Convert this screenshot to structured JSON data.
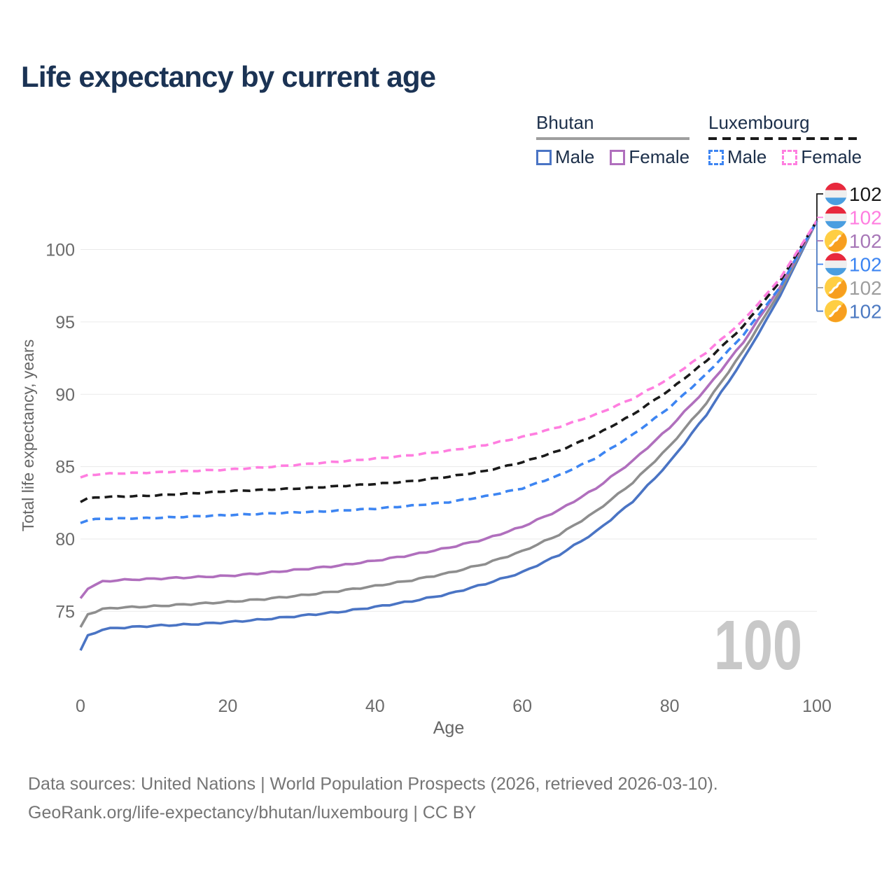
{
  "title": "Life expectancy by current age",
  "legend": {
    "groups": [
      {
        "label": "Bhutan",
        "underline_color": "#9e9e9e",
        "underline_style": "solid",
        "items": [
          {
            "label": "Male",
            "color": "#4a74c4",
            "dash": false
          },
          {
            "label": "Female",
            "color": "#b06fbd",
            "dash": false
          }
        ]
      },
      {
        "label": "Luxembourg",
        "underline_color": "#1a1a1a",
        "underline_style": "dashed",
        "items": [
          {
            "label": "Male",
            "color": "#3d85f2",
            "dash": true
          },
          {
            "label": "Female",
            "color": "#ff7ee0",
            "dash": true
          }
        ]
      }
    ]
  },
  "chart_data": {
    "type": "line",
    "title": "Life expectancy by current age",
    "xlabel": "Age",
    "ylabel": "Total life expectancy, years",
    "xticks": [
      0,
      20,
      40,
      60,
      80,
      100
    ],
    "yticks": [
      75,
      80,
      85,
      90,
      95,
      100
    ],
    "xlim": [
      0,
      100
    ],
    "ylim": [
      72,
      102.5
    ],
    "grid": true,
    "legend_position": "top-right",
    "watermark": "100",
    "series": [
      {
        "name": "Bhutan Male",
        "country": "Bhutan",
        "sex": "Male",
        "flag": "bt",
        "color": "#4a74c4",
        "style": "solid",
        "end_label": "102",
        "end_label_color": "#4d7ac2",
        "label_row": 5,
        "points": [
          [
            0,
            72.3
          ],
          [
            1,
            73.3
          ],
          [
            3,
            73.75
          ],
          [
            5,
            73.85
          ],
          [
            10,
            74.0
          ],
          [
            15,
            74.1
          ],
          [
            20,
            74.25
          ],
          [
            25,
            74.45
          ],
          [
            30,
            74.7
          ],
          [
            35,
            74.95
          ],
          [
            40,
            75.3
          ],
          [
            45,
            75.7
          ],
          [
            50,
            76.2
          ],
          [
            55,
            76.9
          ],
          [
            60,
            77.7
          ],
          [
            65,
            78.9
          ],
          [
            70,
            80.5
          ],
          [
            75,
            82.6
          ],
          [
            80,
            85.3
          ],
          [
            85,
            88.6
          ],
          [
            90,
            92.4
          ],
          [
            95,
            96.8
          ],
          [
            100,
            102
          ]
        ]
      },
      {
        "name": "Bhutan Both sexes",
        "country": "Bhutan",
        "sex": "Both",
        "flag": "bt",
        "color": "#8e8e8e",
        "style": "solid",
        "end_label": "102",
        "end_label_color": "#9e9e9e",
        "label_row": 4,
        "points": [
          [
            0,
            73.9
          ],
          [
            1,
            74.8
          ],
          [
            3,
            75.15
          ],
          [
            5,
            75.25
          ],
          [
            10,
            75.35
          ],
          [
            15,
            75.5
          ],
          [
            20,
            75.65
          ],
          [
            25,
            75.85
          ],
          [
            30,
            76.1
          ],
          [
            35,
            76.4
          ],
          [
            40,
            76.75
          ],
          [
            45,
            77.15
          ],
          [
            50,
            77.65
          ],
          [
            55,
            78.3
          ],
          [
            60,
            79.15
          ],
          [
            65,
            80.3
          ],
          [
            70,
            81.9
          ],
          [
            75,
            83.9
          ],
          [
            80,
            86.4
          ],
          [
            85,
            89.4
          ],
          [
            90,
            93.0
          ],
          [
            95,
            97.1
          ],
          [
            100,
            102
          ]
        ]
      },
      {
        "name": "Bhutan Female",
        "country": "Bhutan",
        "sex": "Female",
        "flag": "bt",
        "color": "#b06fbd",
        "style": "solid",
        "end_label": "102",
        "end_label_color": "#a878b8",
        "label_row": 2,
        "points": [
          [
            0,
            75.9
          ],
          [
            1,
            76.6
          ],
          [
            3,
            77.05
          ],
          [
            5,
            77.15
          ],
          [
            10,
            77.25
          ],
          [
            15,
            77.35
          ],
          [
            20,
            77.45
          ],
          [
            25,
            77.65
          ],
          [
            30,
            77.9
          ],
          [
            35,
            78.15
          ],
          [
            40,
            78.5
          ],
          [
            45,
            78.9
          ],
          [
            50,
            79.4
          ],
          [
            55,
            80.0
          ],
          [
            60,
            80.85
          ],
          [
            65,
            82.0
          ],
          [
            70,
            83.5
          ],
          [
            75,
            85.4
          ],
          [
            80,
            87.7
          ],
          [
            85,
            90.4
          ],
          [
            90,
            93.6
          ],
          [
            95,
            97.4
          ],
          [
            100,
            102
          ]
        ]
      },
      {
        "name": "Luxembourg Male",
        "country": "Luxembourg",
        "sex": "Male",
        "flag": "lu",
        "color": "#3d85f2",
        "style": "dashed",
        "end_label": "102",
        "end_label_color": "#3d85f2",
        "label_row": 3,
        "points": [
          [
            0,
            81.1
          ],
          [
            1,
            81.3
          ],
          [
            3,
            81.4
          ],
          [
            10,
            81.45
          ],
          [
            15,
            81.55
          ],
          [
            20,
            81.65
          ],
          [
            25,
            81.75
          ],
          [
            30,
            81.85
          ],
          [
            35,
            81.95
          ],
          [
            40,
            82.1
          ],
          [
            45,
            82.3
          ],
          [
            50,
            82.55
          ],
          [
            55,
            82.95
          ],
          [
            60,
            83.5
          ],
          [
            65,
            84.4
          ],
          [
            70,
            85.6
          ],
          [
            75,
            87.2
          ],
          [
            80,
            89.1
          ],
          [
            85,
            91.4
          ],
          [
            90,
            94.1
          ],
          [
            95,
            97.4
          ],
          [
            100,
            102
          ]
        ]
      },
      {
        "name": "Luxembourg Both sexes",
        "country": "Luxembourg",
        "sex": "Both",
        "flag": "lu",
        "color": "#1a1a1a",
        "style": "dashed",
        "end_label": "102",
        "end_label_color": "#1a1a1a",
        "label_row": 0,
        "points": [
          [
            0,
            82.55
          ],
          [
            1,
            82.8
          ],
          [
            3,
            82.9
          ],
          [
            10,
            83.0
          ],
          [
            15,
            83.15
          ],
          [
            20,
            83.3
          ],
          [
            25,
            83.4
          ],
          [
            30,
            83.5
          ],
          [
            35,
            83.65
          ],
          [
            40,
            83.8
          ],
          [
            45,
            84.0
          ],
          [
            50,
            84.3
          ],
          [
            55,
            84.7
          ],
          [
            60,
            85.3
          ],
          [
            65,
            86.1
          ],
          [
            70,
            87.2
          ],
          [
            75,
            88.6
          ],
          [
            80,
            90.3
          ],
          [
            85,
            92.3
          ],
          [
            90,
            94.7
          ],
          [
            95,
            97.8
          ],
          [
            100,
            102
          ]
        ]
      },
      {
        "name": "Luxembourg Female",
        "country": "Luxembourg",
        "sex": "Female",
        "flag": "lu",
        "color": "#ff7ee0",
        "style": "dashed",
        "end_label": "102",
        "end_label_color": "#ff7ee0",
        "label_row": 1,
        "points": [
          [
            0,
            84.25
          ],
          [
            1,
            84.4
          ],
          [
            3,
            84.5
          ],
          [
            10,
            84.6
          ],
          [
            15,
            84.7
          ],
          [
            20,
            84.8
          ],
          [
            25,
            84.95
          ],
          [
            30,
            85.15
          ],
          [
            35,
            85.35
          ],
          [
            40,
            85.55
          ],
          [
            45,
            85.8
          ],
          [
            50,
            86.1
          ],
          [
            55,
            86.5
          ],
          [
            60,
            87.05
          ],
          [
            65,
            87.75
          ],
          [
            70,
            88.6
          ],
          [
            75,
            89.7
          ],
          [
            80,
            91.1
          ],
          [
            85,
            92.9
          ],
          [
            90,
            95.1
          ],
          [
            95,
            98.0
          ],
          [
            100,
            102
          ]
        ]
      }
    ]
  },
  "footer": {
    "line1": "Data sources: United Nations | World Population Prospects (2026, retrieved 2026-03-10).",
    "line2": "GeoRank.org/life-expectancy/bhutan/luxembourg | CC BY"
  }
}
